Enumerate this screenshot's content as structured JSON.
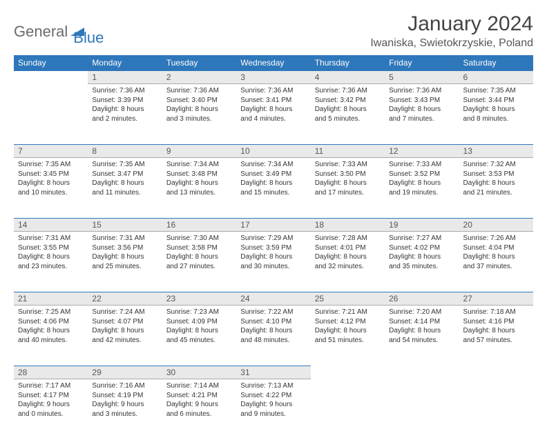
{
  "logo": {
    "text_general": "General",
    "text_blue": "Blue"
  },
  "title": "January 2024",
  "location": "Iwaniska, Swietokrzyskie, Poland",
  "colors": {
    "header_bg": "#2e77bb",
    "header_text": "#ffffff",
    "daynum_bg": "#e9e9e9",
    "border_accent": "#2e77bb",
    "logo_gray": "#6b6b6b",
    "logo_blue": "#2e77bb"
  },
  "weekdays": [
    "Sunday",
    "Monday",
    "Tuesday",
    "Wednesday",
    "Thursday",
    "Friday",
    "Saturday"
  ],
  "weeks": [
    {
      "nums": [
        "",
        "1",
        "2",
        "3",
        "4",
        "5",
        "6"
      ],
      "cells": [
        null,
        {
          "sunrise": "Sunrise: 7:36 AM",
          "sunset": "Sunset: 3:39 PM",
          "day1": "Daylight: 8 hours",
          "day2": "and 2 minutes."
        },
        {
          "sunrise": "Sunrise: 7:36 AM",
          "sunset": "Sunset: 3:40 PM",
          "day1": "Daylight: 8 hours",
          "day2": "and 3 minutes."
        },
        {
          "sunrise": "Sunrise: 7:36 AM",
          "sunset": "Sunset: 3:41 PM",
          "day1": "Daylight: 8 hours",
          "day2": "and 4 minutes."
        },
        {
          "sunrise": "Sunrise: 7:36 AM",
          "sunset": "Sunset: 3:42 PM",
          "day1": "Daylight: 8 hours",
          "day2": "and 5 minutes."
        },
        {
          "sunrise": "Sunrise: 7:36 AM",
          "sunset": "Sunset: 3:43 PM",
          "day1": "Daylight: 8 hours",
          "day2": "and 7 minutes."
        },
        {
          "sunrise": "Sunrise: 7:35 AM",
          "sunset": "Sunset: 3:44 PM",
          "day1": "Daylight: 8 hours",
          "day2": "and 8 minutes."
        }
      ]
    },
    {
      "nums": [
        "7",
        "8",
        "9",
        "10",
        "11",
        "12",
        "13"
      ],
      "cells": [
        {
          "sunrise": "Sunrise: 7:35 AM",
          "sunset": "Sunset: 3:45 PM",
          "day1": "Daylight: 8 hours",
          "day2": "and 10 minutes."
        },
        {
          "sunrise": "Sunrise: 7:35 AM",
          "sunset": "Sunset: 3:47 PM",
          "day1": "Daylight: 8 hours",
          "day2": "and 11 minutes."
        },
        {
          "sunrise": "Sunrise: 7:34 AM",
          "sunset": "Sunset: 3:48 PM",
          "day1": "Daylight: 8 hours",
          "day2": "and 13 minutes."
        },
        {
          "sunrise": "Sunrise: 7:34 AM",
          "sunset": "Sunset: 3:49 PM",
          "day1": "Daylight: 8 hours",
          "day2": "and 15 minutes."
        },
        {
          "sunrise": "Sunrise: 7:33 AM",
          "sunset": "Sunset: 3:50 PM",
          "day1": "Daylight: 8 hours",
          "day2": "and 17 minutes."
        },
        {
          "sunrise": "Sunrise: 7:33 AM",
          "sunset": "Sunset: 3:52 PM",
          "day1": "Daylight: 8 hours",
          "day2": "and 19 minutes."
        },
        {
          "sunrise": "Sunrise: 7:32 AM",
          "sunset": "Sunset: 3:53 PM",
          "day1": "Daylight: 8 hours",
          "day2": "and 21 minutes."
        }
      ]
    },
    {
      "nums": [
        "14",
        "15",
        "16",
        "17",
        "18",
        "19",
        "20"
      ],
      "cells": [
        {
          "sunrise": "Sunrise: 7:31 AM",
          "sunset": "Sunset: 3:55 PM",
          "day1": "Daylight: 8 hours",
          "day2": "and 23 minutes."
        },
        {
          "sunrise": "Sunrise: 7:31 AM",
          "sunset": "Sunset: 3:56 PM",
          "day1": "Daylight: 8 hours",
          "day2": "and 25 minutes."
        },
        {
          "sunrise": "Sunrise: 7:30 AM",
          "sunset": "Sunset: 3:58 PM",
          "day1": "Daylight: 8 hours",
          "day2": "and 27 minutes."
        },
        {
          "sunrise": "Sunrise: 7:29 AM",
          "sunset": "Sunset: 3:59 PM",
          "day1": "Daylight: 8 hours",
          "day2": "and 30 minutes."
        },
        {
          "sunrise": "Sunrise: 7:28 AM",
          "sunset": "Sunset: 4:01 PM",
          "day1": "Daylight: 8 hours",
          "day2": "and 32 minutes."
        },
        {
          "sunrise": "Sunrise: 7:27 AM",
          "sunset": "Sunset: 4:02 PM",
          "day1": "Daylight: 8 hours",
          "day2": "and 35 minutes."
        },
        {
          "sunrise": "Sunrise: 7:26 AM",
          "sunset": "Sunset: 4:04 PM",
          "day1": "Daylight: 8 hours",
          "day2": "and 37 minutes."
        }
      ]
    },
    {
      "nums": [
        "21",
        "22",
        "23",
        "24",
        "25",
        "26",
        "27"
      ],
      "cells": [
        {
          "sunrise": "Sunrise: 7:25 AM",
          "sunset": "Sunset: 4:06 PM",
          "day1": "Daylight: 8 hours",
          "day2": "and 40 minutes."
        },
        {
          "sunrise": "Sunrise: 7:24 AM",
          "sunset": "Sunset: 4:07 PM",
          "day1": "Daylight: 8 hours",
          "day2": "and 42 minutes."
        },
        {
          "sunrise": "Sunrise: 7:23 AM",
          "sunset": "Sunset: 4:09 PM",
          "day1": "Daylight: 8 hours",
          "day2": "and 45 minutes."
        },
        {
          "sunrise": "Sunrise: 7:22 AM",
          "sunset": "Sunset: 4:10 PM",
          "day1": "Daylight: 8 hours",
          "day2": "and 48 minutes."
        },
        {
          "sunrise": "Sunrise: 7:21 AM",
          "sunset": "Sunset: 4:12 PM",
          "day1": "Daylight: 8 hours",
          "day2": "and 51 minutes."
        },
        {
          "sunrise": "Sunrise: 7:20 AM",
          "sunset": "Sunset: 4:14 PM",
          "day1": "Daylight: 8 hours",
          "day2": "and 54 minutes."
        },
        {
          "sunrise": "Sunrise: 7:18 AM",
          "sunset": "Sunset: 4:16 PM",
          "day1": "Daylight: 8 hours",
          "day2": "and 57 minutes."
        }
      ]
    },
    {
      "nums": [
        "28",
        "29",
        "30",
        "31",
        "",
        "",
        ""
      ],
      "cells": [
        {
          "sunrise": "Sunrise: 7:17 AM",
          "sunset": "Sunset: 4:17 PM",
          "day1": "Daylight: 9 hours",
          "day2": "and 0 minutes."
        },
        {
          "sunrise": "Sunrise: 7:16 AM",
          "sunset": "Sunset: 4:19 PM",
          "day1": "Daylight: 9 hours",
          "day2": "and 3 minutes."
        },
        {
          "sunrise": "Sunrise: 7:14 AM",
          "sunset": "Sunset: 4:21 PM",
          "day1": "Daylight: 9 hours",
          "day2": "and 6 minutes."
        },
        {
          "sunrise": "Sunrise: 7:13 AM",
          "sunset": "Sunset: 4:22 PM",
          "day1": "Daylight: 9 hours",
          "day2": "and 9 minutes."
        },
        null,
        null,
        null
      ]
    }
  ]
}
